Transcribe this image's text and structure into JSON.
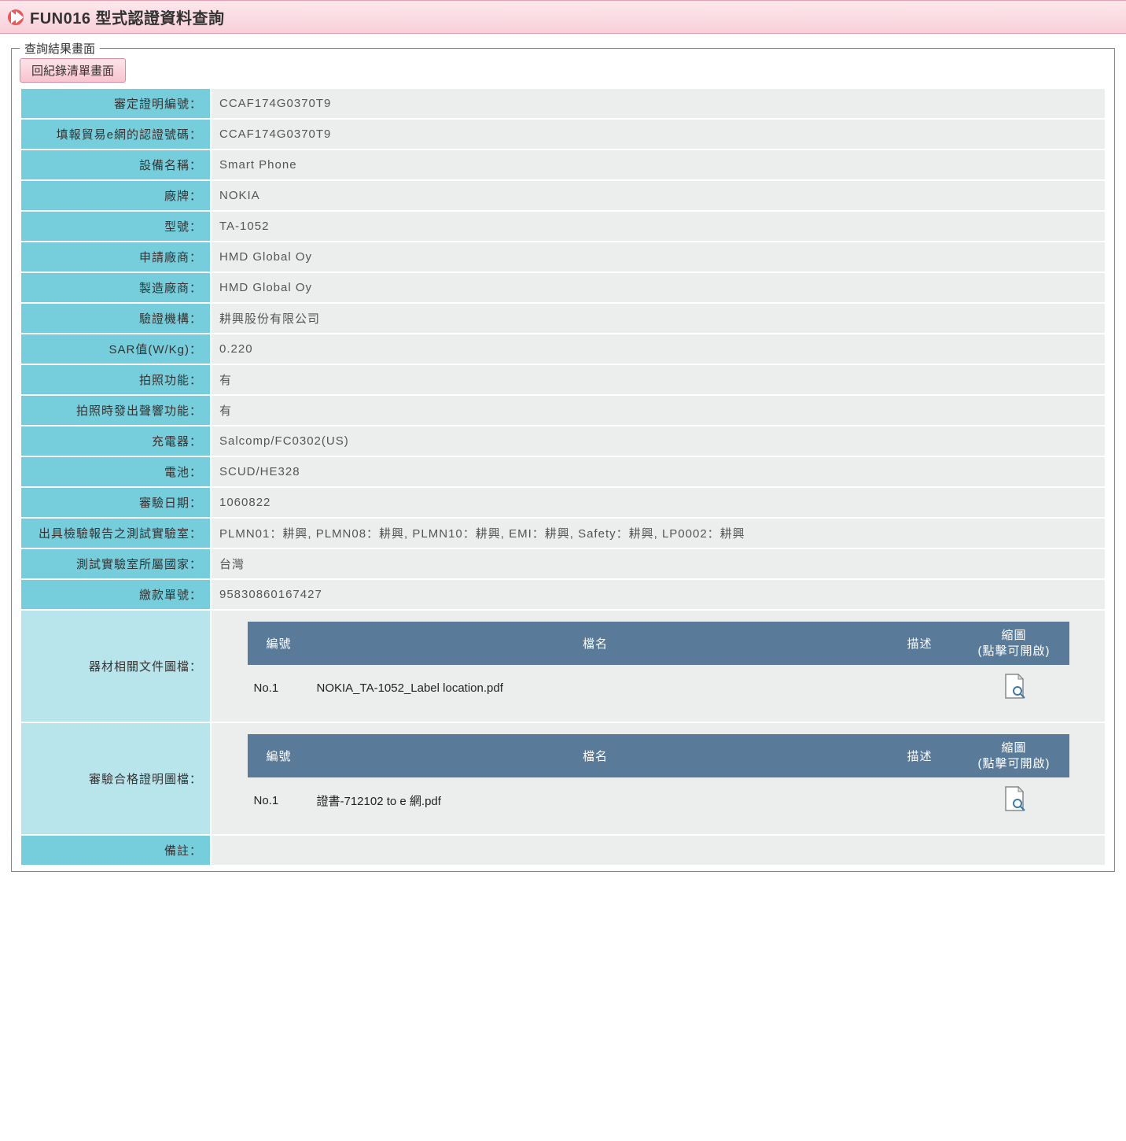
{
  "header": {
    "title": "FUN016 型式認證資料查詢"
  },
  "panel": {
    "legend": "查詢結果畫面",
    "back_button": "回紀錄清單畫面"
  },
  "rows": [
    {
      "label": "審定證明編號：",
      "value": "CCAF174G0370T9"
    },
    {
      "label": "填報貿易e網的認證號碼：",
      "value": "CCAF174G0370T9"
    },
    {
      "label": "設備名稱：",
      "value": "Smart Phone"
    },
    {
      "label": "廠牌：",
      "value": "NOKIA"
    },
    {
      "label": "型號：",
      "value": "TA-1052"
    },
    {
      "label": "申請廠商：",
      "value": "HMD Global Oy"
    },
    {
      "label": "製造廠商：",
      "value": "HMD Global Oy"
    },
    {
      "label": "驗證機構：",
      "value": "耕興股份有限公司"
    },
    {
      "label": "SAR值(W/Kg)：",
      "value": "0.220"
    },
    {
      "label": "拍照功能：",
      "value": "有"
    },
    {
      "label": "拍照時發出聲響功能：",
      "value": "有"
    },
    {
      "label": "充電器：",
      "value": "Salcomp/FC0302(US)"
    },
    {
      "label": "電池：",
      "value": "SCUD/HE328"
    },
    {
      "label": "審驗日期：",
      "value": "1060822"
    },
    {
      "label": "出具檢驗報告之測試實驗室：",
      "value": "PLMN01：耕興, PLMN08：耕興, PLMN10：耕興, EMI：耕興, Safety：耕興, LP0002：耕興"
    },
    {
      "label": "測試實驗室所屬國家：",
      "value": "台灣"
    },
    {
      "label": "繳款單號：",
      "value": "95830860167427"
    }
  ],
  "file_table_headers": {
    "num": "編號",
    "name": "檔名",
    "desc": "描述",
    "thumb_line1": "縮圖",
    "thumb_line2": "(點擊可開啟)"
  },
  "file_sections": [
    {
      "label": "器材相關文件圖檔：",
      "items": [
        {
          "num": "No.1",
          "name": "NOKIA_TA-1052_Label location.pdf",
          "desc": ""
        }
      ]
    },
    {
      "label": "審驗合格證明圖檔：",
      "items": [
        {
          "num": "No.1",
          "name": "證書-712102 to e 網.pdf",
          "desc": ""
        }
      ]
    }
  ],
  "remarks": {
    "label": "備註：",
    "value": ""
  },
  "colors": {
    "header_grad_top": "#fde8ed",
    "header_grad_bottom": "#f8d0da",
    "icon_bg": "#e85a5a",
    "label_bg": "#76cedc",
    "file_label_bg": "#b8e4ec",
    "value_bg": "#eceeee",
    "inner_th_bg": "#5a7a99"
  }
}
